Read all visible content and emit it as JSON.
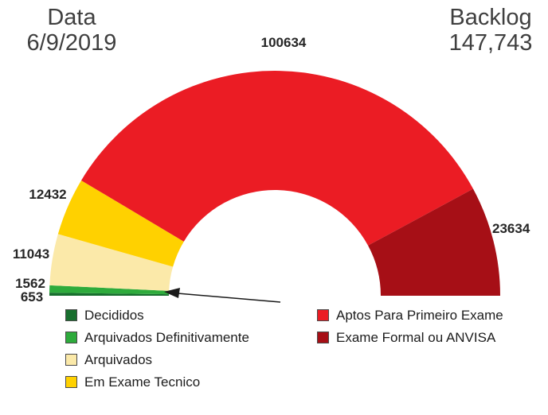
{
  "chart_data": {
    "type": "pie",
    "variant": "half-donut-gauge",
    "date_label": "Data",
    "date_value": "6/9/2019",
    "backlog_label": "Backlog",
    "backlog_value": "147,743",
    "labels": [
      "Decididos",
      "Arquivados Definitivamente",
      "Arquivados",
      "Em Exame Tecnico",
      "Aptos Para Primeiro Exame",
      "Exame Formal ou ANVISA"
    ],
    "values": [
      653,
      1562,
      11043,
      12432,
      100634,
      23634
    ],
    "colors": [
      "#186F2E",
      "#2EAB3C",
      "#FBE9A9",
      "#FFD100",
      "#EB1C24",
      "#A60F16"
    ],
    "start_angle_deg": 180,
    "sweep_deg": 180,
    "legend_position": "bottom",
    "legend_columns": [
      [
        0,
        1,
        2,
        3
      ],
      [
        4,
        5
      ]
    ],
    "arrow_annotation": {
      "points_to_labels": [
        "Decididos",
        "Arquivados Definitivamente"
      ]
    }
  }
}
